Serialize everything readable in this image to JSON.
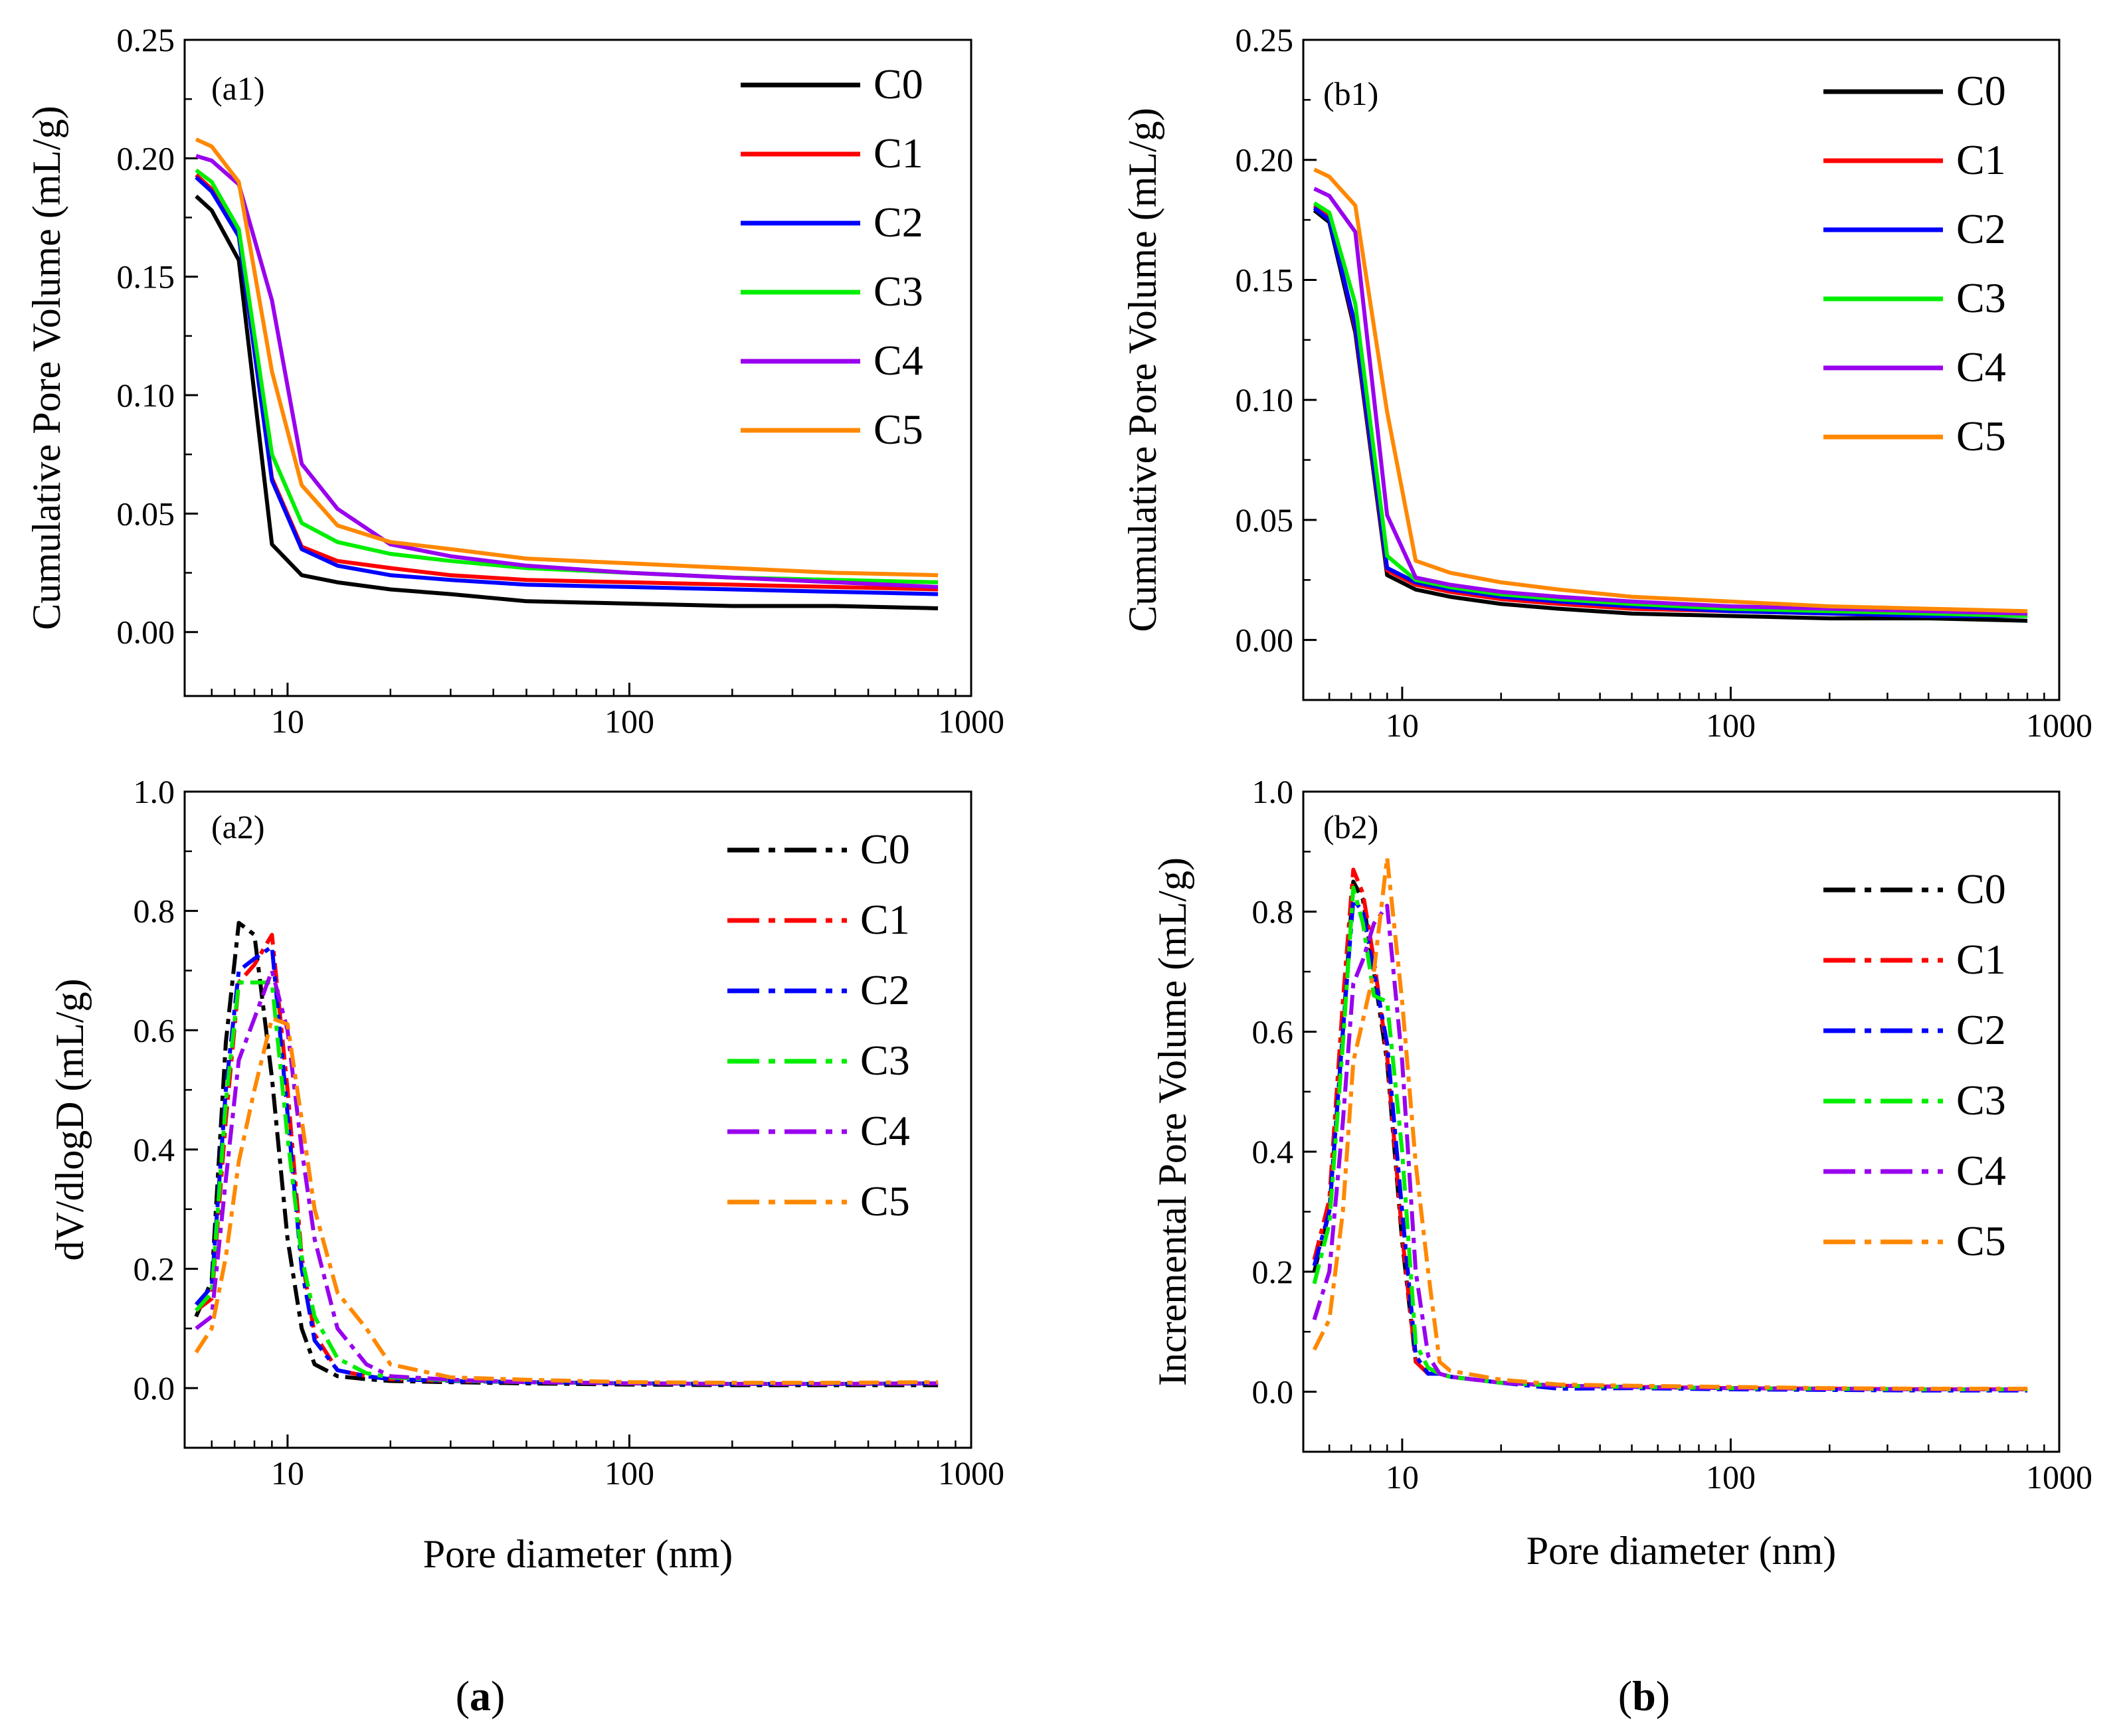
{
  "captions": {
    "a": "a",
    "b": "b"
  },
  "colors": {
    "C0": "#000000",
    "C1": "#ff0000",
    "C2": "#0000ff",
    "C3": "#00ee00",
    "C4": "#9900ee",
    "C5": "#ff8800"
  },
  "chart_data": [
    {
      "id": "a1",
      "type": "line",
      "tag": "(a1)",
      "line_style": "solid",
      "xscale": "log",
      "xlim": [
        5,
        1000
      ],
      "ylim": [
        -0.027,
        0.25
      ],
      "xticks": [
        10,
        100,
        1000
      ],
      "xtick_labels": [
        "10",
        "100",
        "1000"
      ],
      "yticks": [
        0,
        0.05,
        0.1,
        0.15,
        0.2,
        0.25
      ],
      "ytick_labels": [
        "0.00",
        "0.05",
        "0.10",
        "0.15",
        "0.20",
        "0.25"
      ],
      "xlabel": "",
      "ylabel": "Cumulative Pore Volume  (mL/g)",
      "legend": "top-right",
      "x": [
        5.4,
        6,
        7.2,
        9,
        11,
        14,
        20,
        30,
        50,
        100,
        200,
        400,
        800
      ],
      "series": [
        {
          "name": "C0",
          "values": [
            0.184,
            0.178,
            0.157,
            0.037,
            0.024,
            0.021,
            0.018,
            0.016,
            0.013,
            0.012,
            0.011,
            0.011,
            0.01
          ]
        },
        {
          "name": "C1",
          "values": [
            0.193,
            0.187,
            0.168,
            0.065,
            0.036,
            0.03,
            0.027,
            0.024,
            0.022,
            0.021,
            0.02,
            0.019,
            0.018
          ]
        },
        {
          "name": "C2",
          "values": [
            0.192,
            0.186,
            0.167,
            0.064,
            0.035,
            0.028,
            0.024,
            0.022,
            0.02,
            0.019,
            0.018,
            0.017,
            0.016
          ]
        },
        {
          "name": "C3",
          "values": [
            0.195,
            0.19,
            0.17,
            0.075,
            0.046,
            0.038,
            0.033,
            0.03,
            0.027,
            0.025,
            0.023,
            0.022,
            0.021
          ]
        },
        {
          "name": "C4",
          "values": [
            0.201,
            0.199,
            0.189,
            0.14,
            0.071,
            0.052,
            0.037,
            0.032,
            0.028,
            0.025,
            0.023,
            0.021,
            0.019
          ]
        },
        {
          "name": "C5",
          "values": [
            0.208,
            0.205,
            0.19,
            0.11,
            0.062,
            0.045,
            0.038,
            0.035,
            0.031,
            0.029,
            0.027,
            0.025,
            0.024
          ]
        }
      ]
    },
    {
      "id": "b1",
      "type": "line",
      "tag": "(b1)",
      "line_style": "solid",
      "xscale": "log",
      "xlim": [
        5,
        1000
      ],
      "ylim": [
        -0.025,
        0.25
      ],
      "xticks": [
        10,
        100,
        1000
      ],
      "xtick_labels": [
        "10",
        "100",
        "1000"
      ],
      "yticks": [
        0,
        0.05,
        0.1,
        0.15,
        0.2,
        0.25
      ],
      "ytick_labels": [
        "0.00",
        "0.05",
        "0.10",
        "0.15",
        "0.20",
        "0.25"
      ],
      "xlabel": "",
      "ylabel": "Cumulative Pore Volume  (mL/g)",
      "legend": "top-right",
      "x": [
        5.4,
        6,
        7.2,
        9,
        11,
        14,
        20,
        30,
        50,
        100,
        200,
        400,
        800
      ],
      "series": [
        {
          "name": "C0",
          "values": [
            0.179,
            0.174,
            0.128,
            0.027,
            0.021,
            0.018,
            0.015,
            0.013,
            0.011,
            0.01,
            0.009,
            0.009,
            0.008
          ]
        },
        {
          "name": "C1",
          "values": [
            0.181,
            0.176,
            0.13,
            0.029,
            0.023,
            0.02,
            0.017,
            0.015,
            0.013,
            0.012,
            0.011,
            0.01,
            0.01
          ]
        },
        {
          "name": "C2",
          "values": [
            0.18,
            0.175,
            0.131,
            0.03,
            0.024,
            0.021,
            0.018,
            0.016,
            0.014,
            0.012,
            0.011,
            0.01,
            0.01
          ]
        },
        {
          "name": "C3",
          "values": [
            0.182,
            0.178,
            0.14,
            0.035,
            0.025,
            0.022,
            0.019,
            0.017,
            0.015,
            0.013,
            0.012,
            0.011,
            0.01
          ]
        },
        {
          "name": "C4",
          "values": [
            0.188,
            0.185,
            0.17,
            0.052,
            0.026,
            0.023,
            0.02,
            0.018,
            0.016,
            0.014,
            0.013,
            0.012,
            0.011
          ]
        },
        {
          "name": "C5",
          "values": [
            0.196,
            0.193,
            0.181,
            0.095,
            0.033,
            0.028,
            0.024,
            0.021,
            0.018,
            0.016,
            0.014,
            0.013,
            0.012
          ]
        }
      ]
    },
    {
      "id": "a2",
      "type": "line",
      "tag": "(a2)",
      "line_style": "dashdot",
      "xscale": "log",
      "xlim": [
        5,
        1000
      ],
      "ylim": [
        -0.1,
        1.0
      ],
      "xticks": [
        10,
        100,
        1000
      ],
      "xtick_labels": [
        "10",
        "100",
        "1000"
      ],
      "yticks": [
        0,
        0.2,
        0.4,
        0.6,
        0.8,
        1.0
      ],
      "ytick_labels": [
        "0.0",
        "0.2",
        "0.4",
        "0.6",
        "0.8",
        "1.0"
      ],
      "xlabel": "Pore diameter (nm)",
      "ylabel": "dV/dlogD (mL/g)",
      "legend": "top-right",
      "x": [
        5.4,
        6,
        6.6,
        7.2,
        8,
        9,
        10,
        11,
        12,
        14,
        17,
        20,
        30,
        50,
        100,
        200,
        400,
        800
      ],
      "series": [
        {
          "name": "C0",
          "values": [
            0.12,
            0.18,
            0.58,
            0.78,
            0.76,
            0.52,
            0.25,
            0.1,
            0.04,
            0.02,
            0.015,
            0.012,
            0.01,
            0.008,
            0.006,
            0.005,
            0.005,
            0.005
          ]
        },
        {
          "name": "C1",
          "values": [
            0.13,
            0.15,
            0.45,
            0.68,
            0.71,
            0.76,
            0.5,
            0.22,
            0.09,
            0.03,
            0.02,
            0.015,
            0.012,
            0.01,
            0.008,
            0.007,
            0.007,
            0.008
          ]
        },
        {
          "name": "C2",
          "values": [
            0.14,
            0.17,
            0.5,
            0.7,
            0.72,
            0.74,
            0.46,
            0.2,
            0.08,
            0.03,
            0.02,
            0.015,
            0.012,
            0.01,
            0.008,
            0.007,
            0.007,
            0.008
          ]
        },
        {
          "name": "C3",
          "values": [
            0.13,
            0.16,
            0.48,
            0.68,
            0.68,
            0.68,
            0.42,
            0.22,
            0.12,
            0.05,
            0.025,
            0.018,
            0.013,
            0.01,
            0.008,
            0.007,
            0.007,
            0.008
          ]
        },
        {
          "name": "C4",
          "values": [
            0.1,
            0.12,
            0.35,
            0.55,
            0.62,
            0.7,
            0.6,
            0.4,
            0.25,
            0.1,
            0.04,
            0.02,
            0.014,
            0.01,
            0.008,
            0.007,
            0.007,
            0.008
          ]
        },
        {
          "name": "C5",
          "values": [
            0.06,
            0.1,
            0.22,
            0.38,
            0.5,
            0.62,
            0.61,
            0.45,
            0.3,
            0.16,
            0.1,
            0.04,
            0.018,
            0.014,
            0.01,
            0.009,
            0.009,
            0.01
          ]
        }
      ]
    },
    {
      "id": "b2",
      "type": "line",
      "tag": "(b2)",
      "line_style": "dashdot",
      "xscale": "log",
      "xlim": [
        5,
        1000
      ],
      "ylim": [
        -0.1,
        1.0
      ],
      "xticks": [
        10,
        100,
        1000
      ],
      "xtick_labels": [
        "10",
        "100",
        "1000"
      ],
      "yticks": [
        0,
        0.2,
        0.4,
        0.6,
        0.8,
        1.0
      ],
      "ytick_labels": [
        "0.0",
        "0.2",
        "0.4",
        "0.6",
        "0.8",
        "1.0"
      ],
      "xlabel": "Pore diameter (nm)",
      "ylabel": "Incremental Pore Volume  (mL/g)",
      "legend": "top-right",
      "x": [
        5.4,
        6,
        6.6,
        7.1,
        7.6,
        8.2,
        9,
        10,
        11,
        12,
        13,
        14,
        20,
        30,
        50,
        100,
        200,
        400,
        800
      ],
      "series": [
        {
          "name": "C0",
          "values": [
            0.2,
            0.3,
            0.6,
            0.85,
            0.82,
            0.7,
            0.55,
            0.25,
            0.05,
            0.03,
            0.03,
            0.025,
            0.015,
            0.01,
            0.008,
            0.006,
            0.005,
            0.004,
            0.004
          ]
        },
        {
          "name": "C1",
          "values": [
            0.22,
            0.32,
            0.65,
            0.87,
            0.83,
            0.72,
            0.56,
            0.26,
            0.05,
            0.03,
            0.03,
            0.025,
            0.015,
            0.01,
            0.008,
            0.006,
            0.005,
            0.004,
            0.004
          ]
        },
        {
          "name": "C2",
          "values": [
            0.21,
            0.3,
            0.6,
            0.82,
            0.8,
            0.7,
            0.58,
            0.3,
            0.06,
            0.03,
            0.03,
            0.025,
            0.015,
            0.005,
            0.006,
            0.004,
            0.003,
            0.002,
            0.002
          ]
        },
        {
          "name": "C3",
          "values": [
            0.18,
            0.28,
            0.58,
            0.84,
            0.78,
            0.66,
            0.65,
            0.4,
            0.08,
            0.04,
            0.03,
            0.025,
            0.015,
            0.01,
            0.008,
            0.006,
            0.005,
            0.004,
            0.004
          ]
        },
        {
          "name": "C4",
          "values": [
            0.12,
            0.2,
            0.45,
            0.68,
            0.72,
            0.78,
            0.81,
            0.55,
            0.2,
            0.06,
            0.03,
            0.025,
            0.015,
            0.01,
            0.008,
            0.006,
            0.005,
            0.004,
            0.004
          ]
        },
        {
          "name": "C5",
          "values": [
            0.07,
            0.12,
            0.3,
            0.55,
            0.62,
            0.7,
            0.89,
            0.65,
            0.38,
            0.2,
            0.05,
            0.035,
            0.02,
            0.012,
            0.01,
            0.008,
            0.006,
            0.005,
            0.005
          ]
        }
      ]
    }
  ]
}
